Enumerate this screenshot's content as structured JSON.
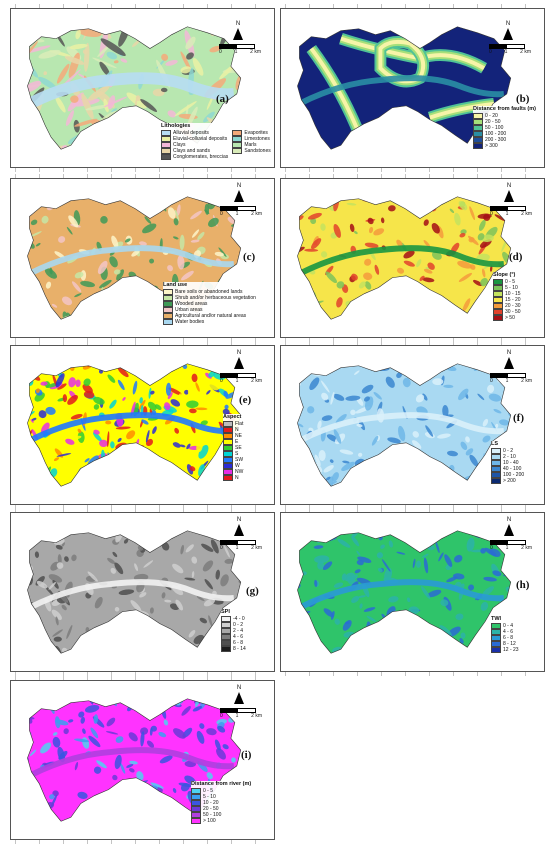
{
  "panels": {
    "a": {
      "label": "(a)",
      "legend_title": "Lithologies",
      "legend_items": [
        {
          "label": "Alluvial deposits",
          "color": "#b7ddf3"
        },
        {
          "label": "Evaporites",
          "color": "#f4a97a"
        },
        {
          "label": "Eluvial-colluvial deposits",
          "color": "#eaf1a4"
        },
        {
          "label": "Limestones",
          "color": "#8ed8d2"
        },
        {
          "label": "Clays",
          "color": "#f3b7d7"
        },
        {
          "label": "Marls",
          "color": "#b8e7b0"
        },
        {
          "label": "Clays and sands",
          "color": "#e9d6a8"
        },
        {
          "label": "Sandstones",
          "color": "#d9ecb9"
        },
        {
          "label": "Conglomerates, breccias",
          "color": "#555555"
        }
      ]
    },
    "b": {
      "label": "(b)",
      "legend_title": "Distance from faults (m)",
      "legend_items": [
        {
          "label": "0 - 20",
          "color": "#f7f4a8"
        },
        {
          "label": "20 - 50",
          "color": "#a6e07a"
        },
        {
          "label": "50 - 100",
          "color": "#50c296"
        },
        {
          "label": "100 - 200",
          "color": "#2a8ea4"
        },
        {
          "label": "200 - 300",
          "color": "#1f4e9a"
        },
        {
          "label": "> 300",
          "color": "#13237a"
        }
      ]
    },
    "c": {
      "label": "(c)",
      "legend_title": "Land use",
      "legend_items": [
        {
          "label": "Bare soils or abandoned lands",
          "color": "#fdf5c8"
        },
        {
          "label": "Shrub and/or herbaceous vegetation",
          "color": "#c6e6a4"
        },
        {
          "label": "Wooded areas",
          "color": "#3f9a57"
        },
        {
          "label": "Urban areas",
          "color": "#f3c6c6"
        },
        {
          "label": "Agricultural and/or natural areas",
          "color": "#e8b06a"
        },
        {
          "label": "Water bodies",
          "color": "#a9d8f0"
        }
      ]
    },
    "d": {
      "label": "(d)",
      "legend_title": "Slope (°)",
      "legend_items": [
        {
          "label": "0 - 5",
          "color": "#1a9641"
        },
        {
          "label": "5 - 10",
          "color": "#7cc35a"
        },
        {
          "label": "10 - 15",
          "color": "#c4e35e"
        },
        {
          "label": "15 - 20",
          "color": "#f6e54a"
        },
        {
          "label": "20 - 30",
          "color": "#f49b3c"
        },
        {
          "label": "30 - 50",
          "color": "#e2432c"
        },
        {
          "label": "> 50",
          "color": "#a50f15"
        }
      ]
    },
    "e": {
      "label": "(e)",
      "legend_title": "Aspect",
      "legend_items": [
        {
          "label": "Flat",
          "color": "#bdbdbd"
        },
        {
          "label": "N",
          "color": "#e31a1c"
        },
        {
          "label": "NE",
          "color": "#ff8c00"
        },
        {
          "label": "E",
          "color": "#ffff00"
        },
        {
          "label": "SE",
          "color": "#33cc33"
        },
        {
          "label": "S",
          "color": "#00d5d5"
        },
        {
          "label": "SW",
          "color": "#1f78ff"
        },
        {
          "label": "W",
          "color": "#2b2bd6"
        },
        {
          "label": "NW",
          "color": "#e62ee6"
        },
        {
          "label": "N",
          "color": "#e31a1c"
        }
      ]
    },
    "f": {
      "label": "(f)",
      "legend_title": "LS",
      "legend_items": [
        {
          "label": "0 - 2",
          "color": "#d9f0fa"
        },
        {
          "label": "2 - 10",
          "color": "#a9d9f2"
        },
        {
          "label": "10 - 40",
          "color": "#6fb6e8"
        },
        {
          "label": "40 - 100",
          "color": "#3b86d0"
        },
        {
          "label": "100 - 200",
          "color": "#1d55a8"
        },
        {
          "label": "> 200",
          "color": "#0b2a72"
        }
      ]
    },
    "g": {
      "label": "(g)",
      "legend_title": "SPI",
      "legend_items": [
        {
          "label": "-4 - 0",
          "color": "#f2f2f2"
        },
        {
          "label": "0 - 2",
          "color": "#cfcfcf"
        },
        {
          "label": "2 - 4",
          "color": "#a8a8a8"
        },
        {
          "label": "4 - 6",
          "color": "#7d7d7d"
        },
        {
          "label": "6 - 8",
          "color": "#4f4f4f"
        },
        {
          "label": "8 - 14",
          "color": "#1c1c1c"
        }
      ]
    },
    "h": {
      "label": "(h)",
      "legend_title": "TWI",
      "legend_items": [
        {
          "label": "0 - 4",
          "color": "#2fc46a"
        },
        {
          "label": "4 - 6",
          "color": "#2cb3a8"
        },
        {
          "label": "6 - 8",
          "color": "#2a9ad6"
        },
        {
          "label": "8 - 12",
          "color": "#2a6bd4"
        },
        {
          "label": "12 - 23",
          "color": "#1a2fa8"
        }
      ]
    },
    "i": {
      "label": "(i)",
      "legend_title": "Distance from river (m)",
      "legend_items": [
        {
          "label": "0 - 5",
          "color": "#4dd4f0"
        },
        {
          "label": "5 - 10",
          "color": "#3aa0f0"
        },
        {
          "label": "10 - 20",
          "color": "#3a55e0"
        },
        {
          "label": "20 - 50",
          "color": "#6a3ad8"
        },
        {
          "label": "50 - 100",
          "color": "#b03ee0"
        },
        {
          "label": "> 100",
          "color": "#ff33ff"
        }
      ]
    }
  },
  "north_label": "N",
  "scale_labels": [
    "0",
    "1",
    "2 km"
  ]
}
